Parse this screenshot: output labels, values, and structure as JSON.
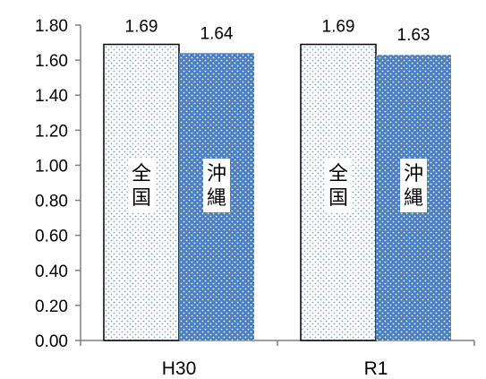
{
  "chart_data": {
    "type": "bar",
    "categories": [
      "H30",
      "R1"
    ],
    "series": [
      {
        "name": "全国",
        "values": [
          1.69,
          1.69
        ],
        "color": "#ffffff",
        "pattern": "light-dots",
        "label_lines": [
          "全",
          "国"
        ]
      },
      {
        "name": "沖縄",
        "values": [
          1.64,
          1.63
        ],
        "color": "#4a7fc1",
        "pattern": "white-dots",
        "label_lines": [
          "沖",
          "縄"
        ]
      }
    ],
    "data_labels": [
      [
        "1.69",
        "1.69"
      ],
      [
        "1.64",
        "1.63"
      ]
    ],
    "yticks": [
      "0.00",
      "0.20",
      "0.40",
      "0.60",
      "0.80",
      "1.00",
      "1.20",
      "1.40",
      "1.60",
      "1.80"
    ],
    "ylim": [
      0,
      1.8
    ],
    "grid": false,
    "legend": "none"
  }
}
